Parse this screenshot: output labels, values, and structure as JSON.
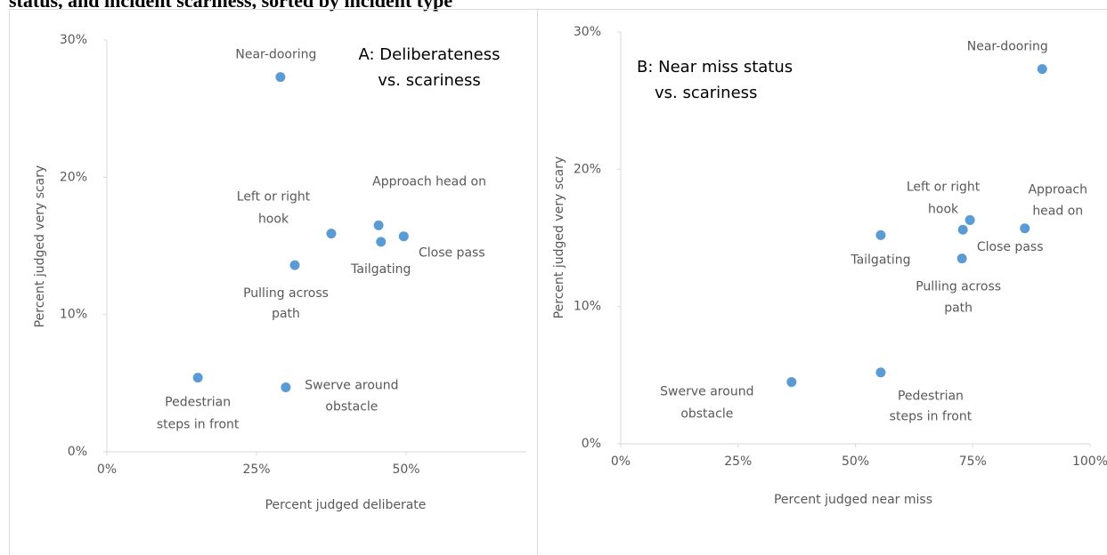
{
  "title": "status, and incident scariness, sorted by incident type",
  "chart_data": [
    {
      "type": "scatter",
      "title": [
        "A: Deliberateness",
        "vs. scariness"
      ],
      "x_label": "Percent judged deliberate",
      "y_label": "Percent judged very  scary",
      "color": "#5b9bd5",
      "xlim": [
        0,
        70
      ],
      "ylim": [
        0,
        30
      ],
      "xticks": [
        {
          "value": 0,
          "label": "0%"
        },
        {
          "value": 25,
          "label": "25%"
        },
        {
          "value": 50,
          "label": "50%"
        }
      ],
      "yticks": [
        {
          "value": 0,
          "label": "0%"
        },
        {
          "value": 10,
          "label": "10%"
        },
        {
          "value": 20,
          "label": "20%"
        },
        {
          "value": 30,
          "label": "30%"
        }
      ],
      "labels": [
        [
          "Near-dooring"
        ],
        [
          "Left or right",
          "hook"
        ],
        [
          "Approach head on"
        ],
        [
          "Tailgating"
        ],
        [
          "Close pass"
        ],
        [
          "Pulling across",
          "path"
        ],
        [
          "Pedestrian",
          "steps in front"
        ],
        [
          "Swerve around",
          "obstacle"
        ]
      ],
      "x": [
        29.0,
        37.5,
        45.4,
        45.8,
        49.6,
        31.4,
        15.2,
        29.9
      ],
      "y": [
        27.3,
        15.9,
        16.5,
        15.3,
        15.7,
        13.6,
        5.4,
        4.7
      ]
    },
    {
      "type": "scatter",
      "title": [
        "B: Near miss status",
        "vs. scariness"
      ],
      "x_label": "Percent judged near miss",
      "y_label": "Percent judged very scary",
      "color": "#5b9bd5",
      "xlim": [
        0,
        100
      ],
      "ylim": [
        0,
        30
      ],
      "xticks": [
        {
          "value": 0,
          "label": "0%"
        },
        {
          "value": 25,
          "label": "25%"
        },
        {
          "value": 50,
          "label": "50%"
        },
        {
          "value": 75,
          "label": "75%"
        },
        {
          "value": 100,
          "label": "100%"
        }
      ],
      "yticks": [
        {
          "value": 0,
          "label": "0%"
        },
        {
          "value": 10,
          "label": "10%"
        },
        {
          "value": 20,
          "label": "20%"
        },
        {
          "value": 30,
          "label": "30%"
        }
      ],
      "labels": [
        [
          "Near-dooring"
        ],
        [
          "Left or right",
          "hook"
        ],
        [
          "Approach",
          "head on"
        ],
        [
          "Tailgating"
        ],
        [
          "Close pass"
        ],
        [
          "Pulling across",
          "path"
        ],
        [
          "Pedestrian",
          "steps in front"
        ],
        [
          "Swerve around",
          "obstacle"
        ]
      ],
      "x": [
        89.8,
        74.4,
        86.1,
        55.4,
        72.9,
        72.7,
        55.4,
        36.4
      ],
      "y": [
        27.3,
        16.3,
        15.7,
        15.2,
        15.6,
        13.5,
        5.2,
        4.5
      ]
    }
  ]
}
